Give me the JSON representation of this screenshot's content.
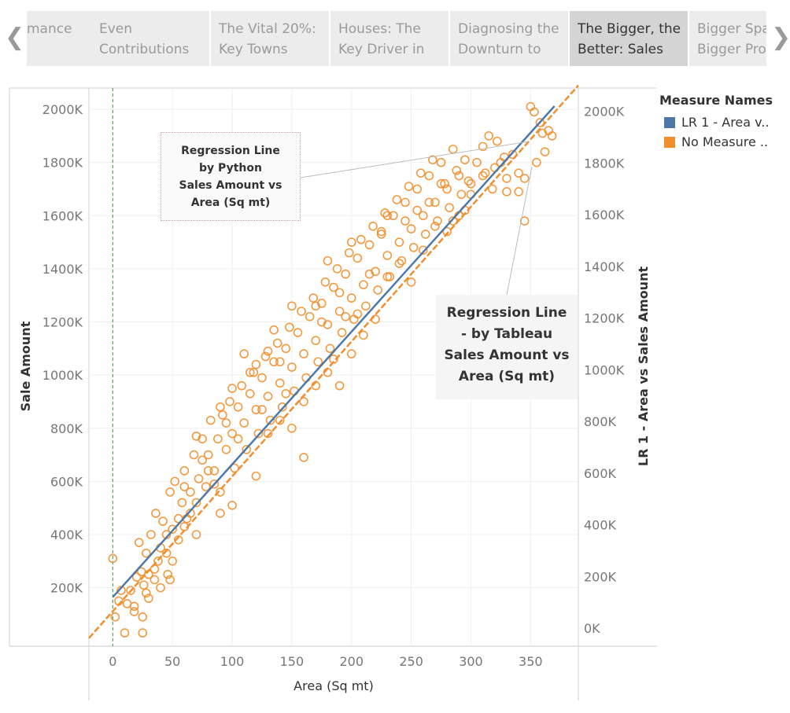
{
  "tabs": [
    {
      "line1": "",
      "line2": "mance",
      "active": false
    },
    {
      "line1": "Even",
      "line2": "Contributions",
      "active": false
    },
    {
      "line1": "The Vital 20%:",
      "line2": "Key Towns",
      "active": false
    },
    {
      "line1": "Houses: The",
      "line2": "Key Driver in",
      "active": false
    },
    {
      "line1": "Diagnosing the",
      "line2": "Downturn to",
      "active": false
    },
    {
      "line1": "The Bigger, the",
      "line2": "Better: Sales",
      "active": true
    },
    {
      "line1": "Bigger Spa",
      "line2": "Bigger Pro",
      "active": false
    }
  ],
  "nav": {
    "prev_icon": "chevron-left-icon",
    "next_icon": "chevron-right-icon",
    "prev_glyph": "❮",
    "next_glyph": "❯"
  },
  "legend": {
    "title": "Measure Names",
    "items": [
      {
        "label": "LR 1 - Area v..",
        "color": "#4e79a7"
      },
      {
        "label": "No Measure ..",
        "color": "#f28e2b"
      }
    ]
  },
  "annotations": {
    "python": [
      "Regression Line",
      "by Python",
      "Sales Amount vs",
      "Area (Sq mt)"
    ],
    "tableau": [
      "Regression Line",
      "- by Tableau",
      "Sales Amount vs",
      "Area (Sq mt)"
    ]
  },
  "chart_data": {
    "type": "scatter",
    "xlabel": "Area (Sq mt)",
    "ylabel": "Sale Amount",
    "y2label": "LR 1 - Area vs Sales Amount",
    "xlim": [
      -20,
      390
    ],
    "ylim": [
      -20000,
      2080000
    ],
    "y2lim": [
      -70000,
      2090000
    ],
    "x_ticks": [
      0,
      50,
      100,
      150,
      200,
      250,
      300,
      350
    ],
    "y_ticks": [
      200000,
      400000,
      600000,
      800000,
      1000000,
      1200000,
      1400000,
      1600000,
      1800000,
      2000000
    ],
    "y_tick_labels": [
      "200K",
      "400K",
      "600K",
      "800K",
      "1000K",
      "1200K",
      "1400K",
      "1600K",
      "1800K",
      "2000K"
    ],
    "y2_ticks": [
      0,
      200000,
      400000,
      600000,
      800000,
      1000000,
      1200000,
      1400000,
      1600000,
      1800000,
      2000000
    ],
    "y2_tick_labels": [
      "0K",
      "200K",
      "400K",
      "600K",
      "800K",
      "1000K",
      "1200K",
      "1400K",
      "1600K",
      "1800K",
      "2000K"
    ],
    "reference_line_x": 0,
    "series": [
      {
        "name": "No Measure ..",
        "color": "#f28e2b",
        "points": [
          [
            0,
            310000
          ],
          [
            2,
            90000
          ],
          [
            5,
            150000
          ],
          [
            7,
            190000
          ],
          [
            10,
            30000
          ],
          [
            12,
            140000
          ],
          [
            15,
            190000
          ],
          [
            18,
            110000
          ],
          [
            20,
            240000
          ],
          [
            22,
            370000
          ],
          [
            24,
            260000
          ],
          [
            25,
            30000
          ],
          [
            25,
            90000
          ],
          [
            26,
            210000
          ],
          [
            28,
            330000
          ],
          [
            30,
            160000
          ],
          [
            32,
            400000
          ],
          [
            35,
            230000
          ],
          [
            36,
            480000
          ],
          [
            38,
            300000
          ],
          [
            40,
            350000
          ],
          [
            42,
            450000
          ],
          [
            45,
            330000
          ],
          [
            46,
            250000
          ],
          [
            48,
            560000
          ],
          [
            50,
            420000
          ],
          [
            52,
            600000
          ],
          [
            55,
            380000
          ],
          [
            58,
            520000
          ],
          [
            60,
            640000
          ],
          [
            62,
            460000
          ],
          [
            65,
            560000
          ],
          [
            68,
            700000
          ],
          [
            70,
            520000
          ],
          [
            72,
            610000
          ],
          [
            75,
            760000
          ],
          [
            78,
            580000
          ],
          [
            80,
            700000
          ],
          [
            82,
            830000
          ],
          [
            85,
            640000
          ],
          [
            88,
            760000
          ],
          [
            90,
            560000
          ],
          [
            92,
            850000
          ],
          [
            95,
            720000
          ],
          [
            98,
            900000
          ],
          [
            100,
            780000
          ],
          [
            102,
            650000
          ],
          [
            105,
            880000
          ],
          [
            108,
            960000
          ],
          [
            110,
            820000
          ],
          [
            112,
            720000
          ],
          [
            115,
            930000
          ],
          [
            118,
            1010000
          ],
          [
            120,
            870000
          ],
          [
            122,
            780000
          ],
          [
            125,
            990000
          ],
          [
            128,
            1070000
          ],
          [
            130,
            920000
          ],
          [
            132,
            830000
          ],
          [
            135,
            1050000
          ],
          [
            138,
            1120000
          ],
          [
            140,
            970000
          ],
          [
            142,
            880000
          ],
          [
            145,
            1100000
          ],
          [
            148,
            1180000
          ],
          [
            150,
            1030000
          ],
          [
            152,
            940000
          ],
          [
            155,
            1160000
          ],
          [
            158,
            1240000
          ],
          [
            160,
            1080000
          ],
          [
            162,
            990000
          ],
          [
            165,
            1220000
          ],
          [
            168,
            1290000
          ],
          [
            170,
            1130000
          ],
          [
            172,
            1050000
          ],
          [
            175,
            1270000
          ],
          [
            178,
            1350000
          ],
          [
            180,
            1190000
          ],
          [
            182,
            1100000
          ],
          [
            185,
            1330000
          ],
          [
            188,
            1400000
          ],
          [
            190,
            1240000
          ],
          [
            192,
            1160000
          ],
          [
            195,
            1380000
          ],
          [
            198,
            1460000
          ],
          [
            200,
            1290000
          ],
          [
            202,
            1210000
          ],
          [
            205,
            1440000
          ],
          [
            208,
            1510000
          ],
          [
            210,
            1340000
          ],
          [
            212,
            1260000
          ],
          [
            215,
            1490000
          ],
          [
            218,
            1560000
          ],
          [
            220,
            1390000
          ],
          [
            222,
            1320000
          ],
          [
            225,
            1540000
          ],
          [
            228,
            1610000
          ],
          [
            230,
            1450000
          ],
          [
            232,
            1370000
          ],
          [
            235,
            1600000
          ],
          [
            238,
            1660000
          ],
          [
            240,
            1500000
          ],
          [
            242,
            1430000
          ],
          [
            245,
            1650000
          ],
          [
            248,
            1710000
          ],
          [
            250,
            1550000
          ],
          [
            252,
            1480000
          ],
          [
            255,
            1700000
          ],
          [
            258,
            1760000
          ],
          [
            260,
            1600000
          ],
          [
            262,
            1530000
          ],
          [
            265,
            1750000
          ],
          [
            268,
            1810000
          ],
          [
            270,
            1650000
          ],
          [
            272,
            1580000
          ],
          [
            275,
            1800000
          ],
          [
            278,
            1720000
          ],
          [
            280,
            1700000
          ],
          [
            282,
            1630000
          ],
          [
            285,
            1850000
          ],
          [
            288,
            1770000
          ],
          [
            290,
            1750000
          ],
          [
            292,
            1680000
          ],
          [
            295,
            1810000
          ],
          [
            298,
            1730000
          ],
          [
            300,
            1720000
          ],
          [
            305,
            1800000
          ],
          [
            310,
            1860000
          ],
          [
            312,
            1760000
          ],
          [
            315,
            1900000
          ],
          [
            318,
            1700000
          ],
          [
            320,
            1780000
          ],
          [
            322,
            1880000
          ],
          [
            325,
            1800000
          ],
          [
            328,
            1820000
          ],
          [
            330,
            1740000
          ],
          [
            335,
            1830000
          ],
          [
            340,
            1690000
          ],
          [
            345,
            1580000
          ],
          [
            350,
            2010000
          ],
          [
            353,
            1990000
          ],
          [
            355,
            1800000
          ],
          [
            358,
            1950000
          ],
          [
            360,
            1910000
          ],
          [
            362,
            1840000
          ],
          [
            365,
            1920000
          ],
          [
            368,
            1900000
          ],
          [
            340,
            1760000
          ],
          [
            310,
            1750000
          ],
          [
            295,
            1620000
          ],
          [
            300,
            1680000
          ],
          [
            290,
            1600000
          ],
          [
            285,
            1580000
          ],
          [
            140,
            1050000
          ],
          [
            160,
            900000
          ],
          [
            190,
            1310000
          ],
          [
            210,
            1150000
          ],
          [
            170,
            1260000
          ],
          [
            130,
            780000
          ],
          [
            100,
            950000
          ],
          [
            120,
            1040000
          ],
          [
            80,
            640000
          ],
          [
            60,
            580000
          ],
          [
            70,
            770000
          ],
          [
            90,
            880000
          ],
          [
            110,
            1080000
          ],
          [
            150,
            1260000
          ],
          [
            180,
            1430000
          ],
          [
            200,
            1500000
          ],
          [
            230,
            1600000
          ],
          [
            245,
            1580000
          ],
          [
            265,
            1650000
          ],
          [
            275,
            1720000
          ],
          [
            255,
            1620000
          ],
          [
            225,
            1530000
          ],
          [
            215,
            1380000
          ],
          [
            195,
            1220000
          ],
          [
            175,
            1200000
          ],
          [
            145,
            930000
          ],
          [
            125,
            870000
          ],
          [
            105,
            760000
          ],
          [
            85,
            590000
          ],
          [
            65,
            480000
          ],
          [
            45,
            400000
          ],
          [
            55,
            460000
          ],
          [
            35,
            270000
          ],
          [
            40,
            200000
          ],
          [
            30,
            250000
          ],
          [
            50,
            300000
          ],
          [
            150,
            800000
          ],
          [
            170,
            960000
          ],
          [
            185,
            1060000
          ],
          [
            205,
            1230000
          ],
          [
            240,
            1420000
          ],
          [
            260,
            1470000
          ],
          [
            280,
            1540000
          ],
          [
            135,
            1170000
          ],
          [
            115,
            1010000
          ],
          [
            95,
            820000
          ],
          [
            75,
            680000
          ],
          [
            160,
            690000
          ],
          [
            230,
            1370000
          ],
          [
            100,
            510000
          ],
          [
            250,
            1350000
          ],
          [
            220,
            1210000
          ],
          [
            190,
            960000
          ],
          [
            130,
            1090000
          ],
          [
            60,
            430000
          ],
          [
            330,
            1690000
          ],
          [
            345,
            1740000
          ],
          [
            270,
            1560000
          ],
          [
            200,
            1080000
          ],
          [
            180,
            1010000
          ],
          [
            140,
            830000
          ],
          [
            120,
            620000
          ],
          [
            90,
            480000
          ],
          [
            70,
            400000
          ],
          [
            48,
            230000
          ],
          [
            28,
            180000
          ],
          [
            18,
            130000
          ]
        ]
      },
      {
        "name": "LR 1 - Area v..",
        "color": "#4e79a7",
        "line": [
          [
            0,
            120000
          ],
          [
            370,
            2020000
          ]
        ]
      }
    ],
    "tableau_trend_line": [
      [
        -20,
        10000
      ],
      [
        390,
        2090000
      ]
    ]
  }
}
